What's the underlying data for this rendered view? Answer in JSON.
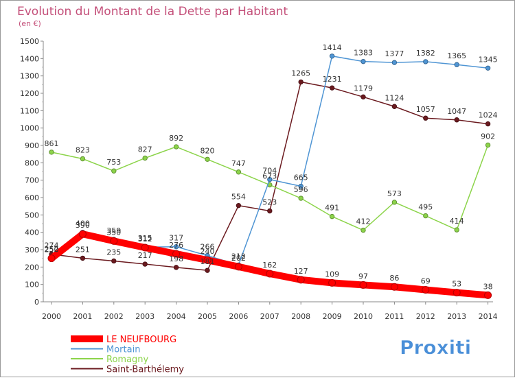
{
  "chart_data": {
    "type": "line",
    "title": "Evolution du Montant de la Dette par Habitant",
    "subtitle": "(en €)",
    "xlabel": "",
    "ylabel": "",
    "x": [
      "2000",
      "2001",
      "2002",
      "2003",
      "2004",
      "2005",
      "2006",
      "2007",
      "2008",
      "2009",
      "2010",
      "2011",
      "2012",
      "2013",
      "2014"
    ],
    "ylim": [
      0,
      1500
    ],
    "yticks": [
      0,
      100,
      200,
      300,
      400,
      500,
      600,
      700,
      800,
      900,
      1000,
      1100,
      1200,
      1300,
      1400,
      1500
    ],
    "grid": false,
    "legend_position": "bottom-left",
    "series": [
      {
        "name": "Saint-Barthélemy",
        "color": "#6b1a1f",
        "values": [
          274,
          251,
          235,
          217,
          198,
          181,
          554,
          523,
          1265,
          1231,
          1179,
          1124,
          1057,
          1047,
          1024
        ]
      },
      {
        "name": "Romagny",
        "color": "#8cd44a",
        "values": [
          861,
          823,
          753,
          827,
          892,
          820,
          747,
          673,
          596,
          491,
          412,
          573,
          495,
          414,
          902
        ]
      },
      {
        "name": "Mortain",
        "color": "#4f95d4",
        "values": [
          252,
          400,
          359,
          315,
          317,
          266,
          212,
          704,
          665,
          1414,
          1383,
          1377,
          1382,
          1365,
          1345
        ]
      },
      {
        "name": "LE NEUFBOURG",
        "color": "#ff0000",
        "values": [
          250,
          390,
          350,
          312,
          276,
          240,
          202,
          162,
          127,
          109,
          97,
          86,
          69,
          53,
          38
        ]
      }
    ]
  },
  "logo": {
    "text": "Proxiti"
  }
}
